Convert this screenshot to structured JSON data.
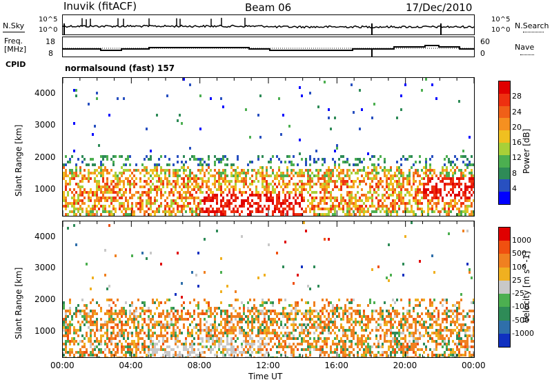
{
  "header": {
    "station": "Inuvik (fitACF)",
    "beam": "Beam 06",
    "date": "17/Dec/2010"
  },
  "top_strip": {
    "nsky_label": "N.Sky",
    "nsky_ticks": [
      "10^5",
      "10^0"
    ],
    "nsearch_label": "N.Search",
    "nsearch_ticks": [
      "10^5",
      "10^0"
    ],
    "freq_label_1": "Freq.",
    "freq_label_2": "[MHz]",
    "freq_ticks": [
      "18",
      "8"
    ],
    "nave_label": "Nave",
    "nave_ticks": [
      "60",
      "0"
    ],
    "cpid_label": "CPID",
    "cpid_value": "normalsound (fast) 157"
  },
  "chart_data": [
    {
      "type": "heatmap",
      "title": "Power",
      "xlabel": "Time UT",
      "ylabel": "Slant Range [km]",
      "x_ticks": [
        "00:00",
        "04:00",
        "08:00",
        "12:00",
        "16:00",
        "20:00",
        "00:00"
      ],
      "x_range_hours": [
        0,
        24
      ],
      "y_ticks": [
        1000,
        2000,
        3000,
        4000
      ],
      "y_range_km": [
        180,
        4500
      ],
      "colorbar": {
        "label": "Power [dB]",
        "ticks": [
          4,
          8,
          12,
          16,
          20,
          24,
          28
        ],
        "range": [
          0,
          32
        ],
        "colors": [
          "#0000ff",
          "#2850c0",
          "#2e8b57",
          "#4caf50",
          "#a8d038",
          "#f0c020",
          "#f59020",
          "#f06018",
          "#ee3010",
          "#e00000"
        ]
      },
      "description_bands": [
        {
          "from_h": 0,
          "to_h": 24,
          "range_from_km": 300,
          "range_to_km": 2000,
          "dominant_dB": 20
        },
        {
          "from_h": 8,
          "to_h": 14,
          "range_from_km": 300,
          "range_to_km": 900,
          "dominant_dB": 30
        },
        {
          "from_h": 21,
          "to_h": 24,
          "range_from_km": 700,
          "range_to_km": 1400,
          "dominant_dB": 30
        }
      ]
    },
    {
      "type": "heatmap",
      "title": "Velocity",
      "xlabel": "Time UT",
      "ylabel": "Slant Range [km]",
      "x_ticks": [
        "00:00",
        "04:00",
        "08:00",
        "12:00",
        "16:00",
        "20:00",
        "00:00"
      ],
      "x_range_hours": [
        0,
        24
      ],
      "y_ticks": [
        1000,
        2000,
        3000,
        4000
      ],
      "y_range_km": [
        180,
        4500
      ],
      "colorbar": {
        "label": "Velocity [m s^-1]",
        "ticks": [
          "1000",
          "500",
          "100",
          "25",
          "-25",
          "-100",
          "-500",
          "-1000"
        ],
        "colors": [
          "#1030c0",
          "#2f6faa",
          "#2e8b57",
          "#4caf50",
          "#c8c8c8",
          "#f0b020",
          "#f08020",
          "#f05010",
          "#e00000"
        ]
      },
      "description_bands": [
        {
          "from_h": 0,
          "to_h": 24,
          "range_from_km": 400,
          "range_to_km": 2000,
          "dominant_velocity": "-100"
        },
        {
          "from_h": 5,
          "to_h": 12,
          "range_from_km": 200,
          "range_to_km": 900,
          "dominant_velocity": "25"
        }
      ]
    }
  ]
}
